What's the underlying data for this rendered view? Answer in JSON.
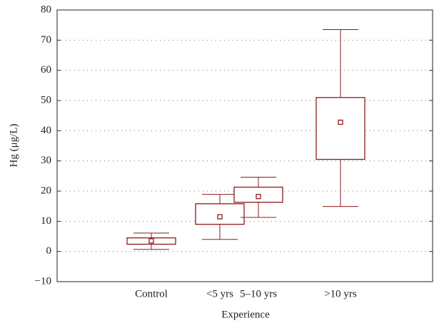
{
  "chart_data": {
    "type": "box",
    "xlabel": "Experience",
    "ylabel": "Hg (μg/L)",
    "categories": [
      "Control",
      "<5 yrs",
      "5–10 yrs",
      ">10 yrs"
    ],
    "boxes": [
      {
        "min": 0.7,
        "q1": 2.4,
        "median": 3.5,
        "q3": 4.5,
        "max": 6.1
      },
      {
        "min": 4,
        "q1": 9,
        "median": 11.5,
        "q3": 15.8,
        "max": 18.9
      },
      {
        "min": 11.3,
        "q1": 16.3,
        "median": 18.2,
        "q3": 21.3,
        "max": 24.6
      },
      {
        "min": 14.9,
        "q1": 30.5,
        "median": 42.8,
        "q3": 51,
        "max": 73.5
      }
    ],
    "color": "#8b1c1c",
    "ylim": [
      -10,
      80
    ],
    "yticks": [
      {
        "value": -10,
        "label": "−10"
      },
      0,
      10,
      20,
      30,
      40,
      50,
      60,
      70,
      80
    ],
    "grid": true
  }
}
